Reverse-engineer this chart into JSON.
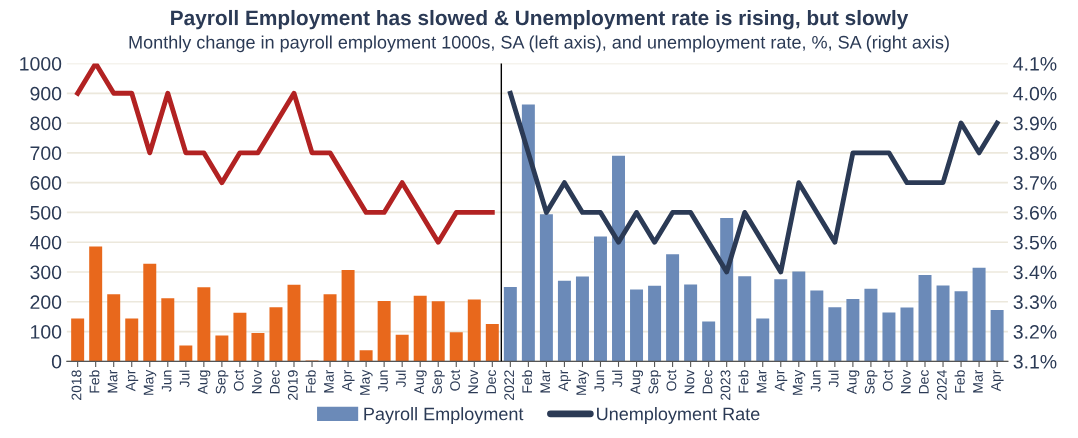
{
  "chart_data": {
    "type": "bar",
    "title": "Payroll Employment has slowed & Unemployment rate is rising, but slowly",
    "subtitle": "Monthly change in payroll employment 1000s, SA (left axis), and unemployment rate, %, SA (right axis)",
    "categories": [
      "2018",
      "Feb",
      "Mar",
      "Apr",
      "May",
      "Jun",
      "Jul",
      "Aug",
      "Sep",
      "Oct",
      "Nov",
      "Dec",
      "2019",
      "Feb",
      "Mar",
      "Apr",
      "May",
      "Jun",
      "Jul",
      "Aug",
      "Sep",
      "Oct",
      "Nov",
      "Dec",
      "2022",
      "Feb",
      "Mar",
      "Apr",
      "May",
      "Jun",
      "Jul",
      "Aug",
      "Sep",
      "Oct",
      "Nov",
      "Dec",
      "2023",
      "Feb",
      "Mar",
      "Apr",
      "May",
      "Jun",
      "Jul",
      "Aug",
      "Sep",
      "Oct",
      "Nov",
      "Dec",
      "2024",
      "Feb",
      "Mar",
      "Apr"
    ],
    "series": [
      {
        "color": "#e8681c",
        "values": [
          144,
          386,
          225,
          144,
          328,
          212,
          53,
          249,
          87,
          163,
          95,
          182,
          257,
          3,
          225,
          307,
          37,
          203,
          89,
          220,
          202,
          98,
          208,
          125,
          null,
          null,
          null,
          null,
          null,
          null,
          null,
          null,
          null,
          null,
          null,
          null,
          null,
          null,
          null,
          null,
          null,
          null,
          null,
          null,
          null,
          null,
          null,
          null,
          null,
          null,
          null,
          null
        ]
      },
      {
        "name": "Payroll Employment",
        "color": "#6b8ab8",
        "values": [
          null,
          null,
          null,
          null,
          null,
          null,
          null,
          null,
          null,
          null,
          null,
          null,
          null,
          null,
          null,
          null,
          null,
          null,
          null,
          null,
          null,
          null,
          null,
          null,
          250,
          862,
          494,
          271,
          285,
          419,
          690,
          241,
          254,
          360,
          258,
          134,
          481,
          286,
          144,
          276,
          302,
          238,
          182,
          209,
          244,
          164,
          181,
          290,
          255,
          235,
          314,
          172
        ]
      },
      {
        "type": "line",
        "axis": "y2",
        "color": "#b22222",
        "values": [
          4.0,
          4.1,
          4.0,
          4.0,
          3.8,
          4.0,
          3.8,
          3.8,
          3.7,
          3.8,
          3.8,
          3.9,
          4.0,
          3.8,
          3.8,
          3.7,
          3.6,
          3.6,
          3.7,
          3.6,
          3.5,
          3.6,
          3.6,
          3.6,
          null,
          null,
          null,
          null,
          null,
          null,
          null,
          null,
          null,
          null,
          null,
          null,
          null,
          null,
          null,
          null,
          null,
          null,
          null,
          null,
          null,
          null,
          null,
          null,
          null,
          null,
          null,
          null
        ]
      },
      {
        "name": "Unemployment Rate",
        "type": "line",
        "axis": "y2",
        "color": "#2b3a55",
        "values": [
          null,
          null,
          null,
          null,
          null,
          null,
          null,
          null,
          null,
          null,
          null,
          null,
          null,
          null,
          null,
          null,
          null,
          null,
          null,
          null,
          null,
          null,
          null,
          null,
          4.0,
          3.8,
          3.6,
          3.7,
          3.6,
          3.6,
          3.5,
          3.6,
          3.5,
          3.6,
          3.6,
          3.5,
          3.4,
          3.6,
          3.5,
          3.4,
          3.7,
          3.6,
          3.5,
          3.8,
          3.8,
          3.8,
          3.7,
          3.7,
          3.7,
          3.9,
          3.8,
          3.9
        ]
      }
    ],
    "ylim": [
      0,
      1000
    ],
    "yticks": [
      0,
      100,
      200,
      300,
      400,
      500,
      600,
      700,
      800,
      900,
      1000
    ],
    "y2lim": [
      3.1,
      4.1
    ],
    "y2ticks": [
      {
        "value": 3.1,
        "label": "3.1%"
      },
      {
        "value": 3.2,
        "label": "3.2%"
      },
      {
        "value": 3.3,
        "label": "3.3%"
      },
      {
        "value": 3.4,
        "label": "3.4%"
      },
      {
        "value": 3.5,
        "label": "3.5%"
      },
      {
        "value": 3.6,
        "label": "3.6%"
      },
      {
        "value": 3.7,
        "label": "3.7%"
      },
      {
        "value": 3.8,
        "label": "3.8%"
      },
      {
        "value": 3.9,
        "label": "3.9%"
      },
      {
        "value": 4.0,
        "label": "4.0%"
      },
      {
        "value": 4.1,
        "label": "4.1%"
      }
    ],
    "ref_lines": [
      {
        "axis": "x",
        "value": "2022",
        "color": "#000000"
      }
    ],
    "grid": "y",
    "legend": "bottom",
    "line_style": "solid",
    "marker": "none"
  }
}
